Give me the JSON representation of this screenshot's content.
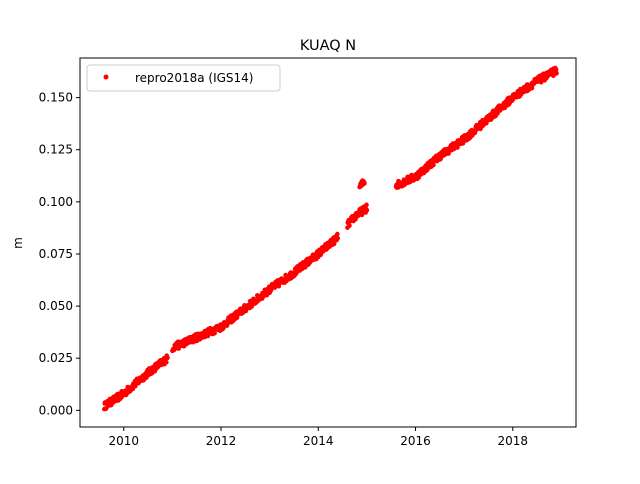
{
  "chart_data": {
    "type": "scatter",
    "title": "KUAQ N",
    "xlabel": "",
    "ylabel": "m",
    "xlim": [
      2009.1,
      2019.3
    ],
    "ylim": [
      -0.008,
      0.169
    ],
    "x_ticks": [
      2010,
      2012,
      2014,
      2016,
      2018
    ],
    "x_tick_labels": [
      "2010",
      "2012",
      "2014",
      "2016",
      "2018"
    ],
    "y_ticks": [
      0.0,
      0.025,
      0.05,
      0.075,
      0.1,
      0.125,
      0.15
    ],
    "y_tick_labels": [
      "0.000",
      "0.025",
      "0.050",
      "0.075",
      "0.100",
      "0.125",
      "0.150"
    ],
    "grid": false,
    "legend_position": "top-left",
    "series": [
      {
        "name": "repro2018a (IGS14)",
        "color": "#ff0000",
        "marker": "circle",
        "segments": [
          {
            "x": [
              2009.6,
              2010.0,
              2010.5,
              2010.9
            ],
            "y": [
              0.002,
              0.008,
              0.018,
              0.025
            ]
          },
          {
            "x": [
              2011.0,
              2011.5,
              2012.0,
              2012.5,
              2013.0,
              2013.5,
              2014.0,
              2014.4
            ],
            "y": [
              0.03,
              0.035,
              0.04,
              0.049,
              0.058,
              0.066,
              0.075,
              0.083
            ]
          },
          {
            "x": [
              2014.6,
              2014.8,
              2015.0
            ],
            "y": [
              0.089,
              0.094,
              0.097
            ]
          },
          {
            "x": [
              2014.85,
              2014.95
            ],
            "y": [
              0.107,
              0.11
            ]
          },
          {
            "x": [
              2015.6,
              2016.0,
              2016.5,
              2017.0,
              2017.5,
              2018.0,
              2018.5,
              2018.9
            ],
            "y": [
              0.108,
              0.112,
              0.122,
              0.13,
              0.14,
              0.15,
              0.158,
              0.163
            ]
          }
        ]
      }
    ]
  }
}
